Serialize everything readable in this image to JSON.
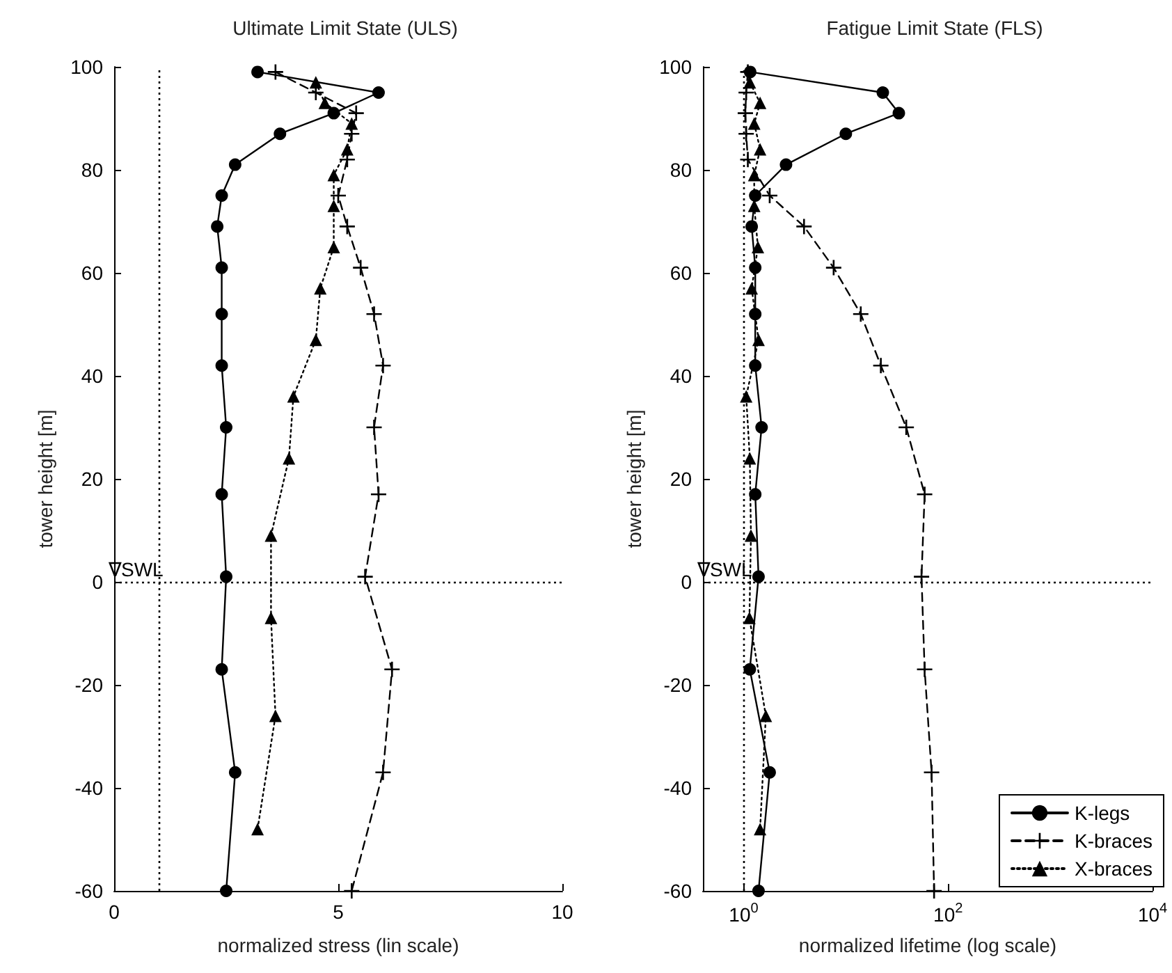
{
  "chart_data": [
    {
      "type": "line",
      "title": "Ultimate Limit State (ULS)",
      "xlabel": "normalized stress (lin scale)",
      "ylabel": "tower height [m]",
      "xlim": [
        0,
        10
      ],
      "xticks": [
        0,
        5,
        10
      ],
      "ylim": [
        -60,
        100
      ],
      "yticks": [
        -60,
        -40,
        -20,
        0,
        20,
        40,
        60,
        80,
        100
      ],
      "grid": false,
      "legend": false,
      "ref_lines": [
        {
          "axis": "x",
          "value": 1,
          "line_style": "dotted",
          "color": "#000000"
        },
        {
          "axis": "y",
          "value": 0,
          "label": "∇SWL",
          "line_style": "dotted",
          "color": "#000000"
        }
      ],
      "series": [
        {
          "color": "#000000",
          "marker": "circle",
          "line_style": "solid",
          "x": [
            3.2,
            5.9,
            4.9,
            3.7,
            2.7,
            2.4,
            2.3,
            2.4,
            2.4,
            2.4,
            2.5,
            2.4,
            2.5,
            2.4,
            2.7,
            2.5
          ],
          "values": [
            99,
            95,
            91,
            87,
            81,
            75,
            69,
            61,
            52,
            42,
            30,
            17,
            1,
            -17,
            -37,
            -60
          ]
        },
        {
          "color": "#000000",
          "marker": "cross",
          "line_style": "dashed",
          "x": [
            3.6,
            4.5,
            5.4,
            5.3,
            5.2,
            5.0,
            5.2,
            5.5,
            5.8,
            6.0,
            5.8,
            5.9,
            5.6,
            6.2,
            6.0,
            5.3
          ],
          "values": [
            99,
            95,
            91,
            87,
            82,
            75,
            69,
            61,
            52,
            42,
            30,
            17,
            1,
            -17,
            -37,
            -60
          ]
        },
        {
          "color": "#000000",
          "marker": "triangle",
          "line_style": "dotted",
          "x": [
            4.5,
            4.7,
            5.3,
            5.2,
            4.9,
            4.9,
            4.9,
            4.6,
            4.5,
            4.0,
            3.9,
            3.5,
            3.5,
            3.6,
            3.2
          ],
          "values": [
            97,
            93,
            89,
            84,
            79,
            73,
            65,
            57,
            47,
            36,
            24,
            9,
            -7,
            -26,
            -48
          ]
        }
      ]
    },
    {
      "type": "line",
      "title": "Fatigue Limit State (FLS)",
      "xlabel": "normalized lifetime (log scale)",
      "ylabel": "tower height [m]",
      "log": "x",
      "xlim": [
        0.4,
        10000
      ],
      "xticks": [
        {
          "value": 1,
          "label": "10$^{0}$"
        },
        {
          "value": 100,
          "label": "10$^{2}$"
        },
        {
          "value": 10000,
          "label": "10$^{4}$"
        }
      ],
      "ylim": [
        -60,
        100
      ],
      "yticks": [
        -60,
        -40,
        -20,
        0,
        20,
        40,
        60,
        80,
        100
      ],
      "grid": false,
      "legend": "bottom right",
      "ref_lines": [
        {
          "axis": "x",
          "value": 1,
          "line_style": "dotted",
          "color": "#000000"
        },
        {
          "axis": "y",
          "value": 0,
          "label": "∇SWL",
          "line_style": "dotted",
          "color": "#000000"
        }
      ],
      "series": [
        {
          "name": "K-legs",
          "color": "#000000",
          "marker": "circle",
          "line_style": "solid",
          "x": [
            1.16,
            23,
            33,
            10,
            2.6,
            1.3,
            1.2,
            1.3,
            1.3,
            1.3,
            1.5,
            1.3,
            1.4,
            1.15,
            1.8,
            1.4
          ],
          "values": [
            99,
            95,
            91,
            87,
            81,
            75,
            69,
            61,
            52,
            42,
            30,
            17,
            1,
            -17,
            -37,
            -60
          ]
        },
        {
          "name": "K-braces",
          "color": "#000000",
          "marker": "cross",
          "line_style": "dashed",
          "x": [
            1.1,
            1.06,
            1.04,
            1.06,
            1.1,
            1.8,
            3.9,
            7.6,
            14,
            22,
            39,
            59,
            55,
            59,
            69,
            73
          ],
          "values": [
            99,
            95,
            91,
            87,
            82,
            75,
            69,
            61,
            52,
            42,
            30,
            17,
            1,
            -17,
            -37,
            -60
          ]
        },
        {
          "name": "X-braces",
          "color": "#000000",
          "marker": "triangle",
          "line_style": "dotted",
          "x": [
            1.15,
            1.45,
            1.27,
            1.45,
            1.27,
            1.27,
            1.38,
            1.2,
            1.4,
            1.06,
            1.15,
            1.18,
            1.14,
            1.65,
            1.45
          ],
          "values": [
            97,
            93,
            89,
            84,
            79,
            73,
            65,
            57,
            47,
            36,
            24,
            9,
            -7,
            -26,
            -48
          ]
        }
      ]
    }
  ]
}
